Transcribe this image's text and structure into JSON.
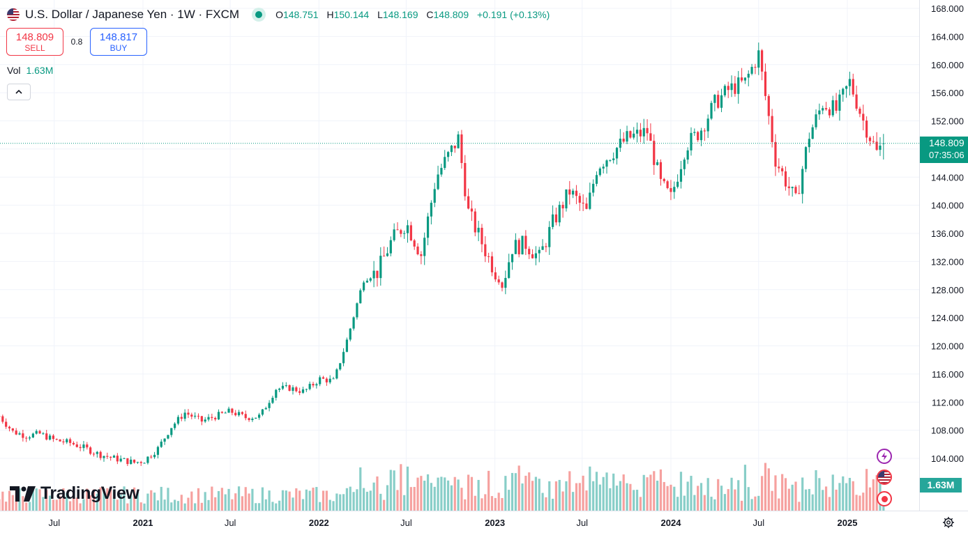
{
  "header": {
    "symbol": "U.S. Dollar / Japanese Yen · 1W · FXCM",
    "open_label": "O",
    "open": "148.751",
    "high_label": "H",
    "high": "150.144",
    "low_label": "L",
    "low": "148.169",
    "close_label": "C",
    "close": "148.809",
    "change": "+0.191 (+0.13%)"
  },
  "trade": {
    "sell_price": "148.809",
    "sell_label": "SELL",
    "spread": "0.8",
    "buy_price": "148.817",
    "buy_label": "BUY"
  },
  "volume": {
    "label": "Vol",
    "value": "1.63M"
  },
  "last_price": {
    "price": "148.809",
    "countdown": "07:35:06"
  },
  "logo": {
    "text": "TradingView"
  },
  "colors": {
    "up": "#089981",
    "down": "#f23645",
    "vol_up": "#26a69a",
    "vol_down": "#ef5350"
  },
  "icons": [
    "us-flag-icon",
    "live-dot-icon",
    "chevron-up-icon",
    "lightning-icon",
    "us-flag-event-icon",
    "record-icon",
    "gear-icon"
  ],
  "chart_data": {
    "type": "candlestick",
    "instrument": "U.S. Dollar / Japanese Yen",
    "interval": "1W",
    "y_axis": {
      "min": 102,
      "max": 169,
      "ticks": [
        "168.000",
        "164.000",
        "160.000",
        "156.000",
        "152.000",
        "148.000",
        "144.000",
        "140.000",
        "136.000",
        "132.000",
        "128.000",
        "124.000",
        "120.000",
        "116.000",
        "112.000",
        "108.000",
        "104.000"
      ]
    },
    "x_axis": {
      "ticks": [
        {
          "label": "Jul",
          "date": "2020-07-01"
        },
        {
          "label": "2021",
          "date": "2021-01-01"
        },
        {
          "label": "Jul",
          "date": "2021-07-01"
        },
        {
          "label": "2022",
          "date": "2022-01-01"
        },
        {
          "label": "Jul",
          "date": "2022-07-01"
        },
        {
          "label": "2023",
          "date": "2023-01-01"
        },
        {
          "label": "Jul",
          "date": "2023-07-01"
        },
        {
          "label": "2024",
          "date": "2024-01-01"
        },
        {
          "label": "Jul",
          "date": "2024-07-01"
        },
        {
          "label": "2025",
          "date": "2025-01-01"
        }
      ]
    },
    "last_close": 148.809,
    "closes": [
      {
        "date": "2020-03-09",
        "close": 110.0
      },
      {
        "date": "2020-04-06",
        "close": 107.8
      },
      {
        "date": "2020-05-04",
        "close": 107.2
      },
      {
        "date": "2020-06-01",
        "close": 107.5
      },
      {
        "date": "2020-07-01",
        "close": 106.6
      },
      {
        "date": "2020-08-03",
        "close": 106.2
      },
      {
        "date": "2020-09-01",
        "close": 105.5
      },
      {
        "date": "2020-10-01",
        "close": 104.6
      },
      {
        "date": "2020-11-02",
        "close": 104.0
      },
      {
        "date": "2020-12-14",
        "close": 103.4
      },
      {
        "date": "2021-01-04",
        "close": 103.7
      },
      {
        "date": "2021-02-01",
        "close": 105.4
      },
      {
        "date": "2021-03-01",
        "close": 108.5
      },
      {
        "date": "2021-03-29",
        "close": 110.5
      },
      {
        "date": "2021-05-03",
        "close": 109.3
      },
      {
        "date": "2021-06-01",
        "close": 110.0
      },
      {
        "date": "2021-07-01",
        "close": 110.7
      },
      {
        "date": "2021-08-02",
        "close": 109.8
      },
      {
        "date": "2021-09-01",
        "close": 110.0
      },
      {
        "date": "2021-10-04",
        "close": 113.9
      },
      {
        "date": "2021-11-01",
        "close": 114.0
      },
      {
        "date": "2021-12-01",
        "close": 113.5
      },
      {
        "date": "2022-01-03",
        "close": 115.3
      },
      {
        "date": "2022-02-01",
        "close": 115.0
      },
      {
        "date": "2022-03-01",
        "close": 121.0
      },
      {
        "date": "2022-04-04",
        "close": 129.5
      },
      {
        "date": "2022-05-02",
        "close": 130.5
      },
      {
        "date": "2022-06-01",
        "close": 135.0
      },
      {
        "date": "2022-07-01",
        "close": 137.5
      },
      {
        "date": "2022-08-01",
        "close": 133.0
      },
      {
        "date": "2022-09-01",
        "close": 144.0
      },
      {
        "date": "2022-10-17",
        "close": 149.5
      },
      {
        "date": "2022-11-07",
        "close": 139.0
      },
      {
        "date": "2022-12-19",
        "close": 132.5
      },
      {
        "date": "2023-01-16",
        "close": 128.5
      },
      {
        "date": "2023-02-06",
        "close": 134.0
      },
      {
        "date": "2023-03-06",
        "close": 134.5
      },
      {
        "date": "2023-04-03",
        "close": 132.5
      },
      {
        "date": "2023-05-01",
        "close": 137.5
      },
      {
        "date": "2023-06-05",
        "close": 142.0
      },
      {
        "date": "2023-07-10",
        "close": 139.0
      },
      {
        "date": "2023-08-01",
        "close": 145.5
      },
      {
        "date": "2023-09-01",
        "close": 147.5
      },
      {
        "date": "2023-10-02",
        "close": 149.5
      },
      {
        "date": "2023-11-13",
        "close": 150.5
      },
      {
        "date": "2023-12-11",
        "close": 143.0
      },
      {
        "date": "2024-01-01",
        "close": 141.0
      },
      {
        "date": "2024-02-01",
        "close": 148.5
      },
      {
        "date": "2024-03-01",
        "close": 150.5
      },
      {
        "date": "2024-04-01",
        "close": 154.5
      },
      {
        "date": "2024-05-01",
        "close": 156.5
      },
      {
        "date": "2024-06-03",
        "close": 157.5
      },
      {
        "date": "2024-07-01",
        "close": 161.5
      },
      {
        "date": "2024-08-05",
        "close": 146.5
      },
      {
        "date": "2024-09-16",
        "close": 140.5
      },
      {
        "date": "2024-10-14",
        "close": 150.0
      },
      {
        "date": "2024-11-11",
        "close": 154.5
      },
      {
        "date": "2024-12-09",
        "close": 153.5
      },
      {
        "date": "2025-01-06",
        "close": 157.5
      },
      {
        "date": "2025-02-03",
        "close": 152.0
      },
      {
        "date": "2025-03-03",
        "close": 147.5
      },
      {
        "date": "2025-03-17",
        "close": 148.809
      }
    ],
    "max_high": {
      "date": "2024-07-01",
      "value": 162.0
    },
    "min_low": {
      "date": "2021-01-04",
      "value": 102.6
    }
  }
}
